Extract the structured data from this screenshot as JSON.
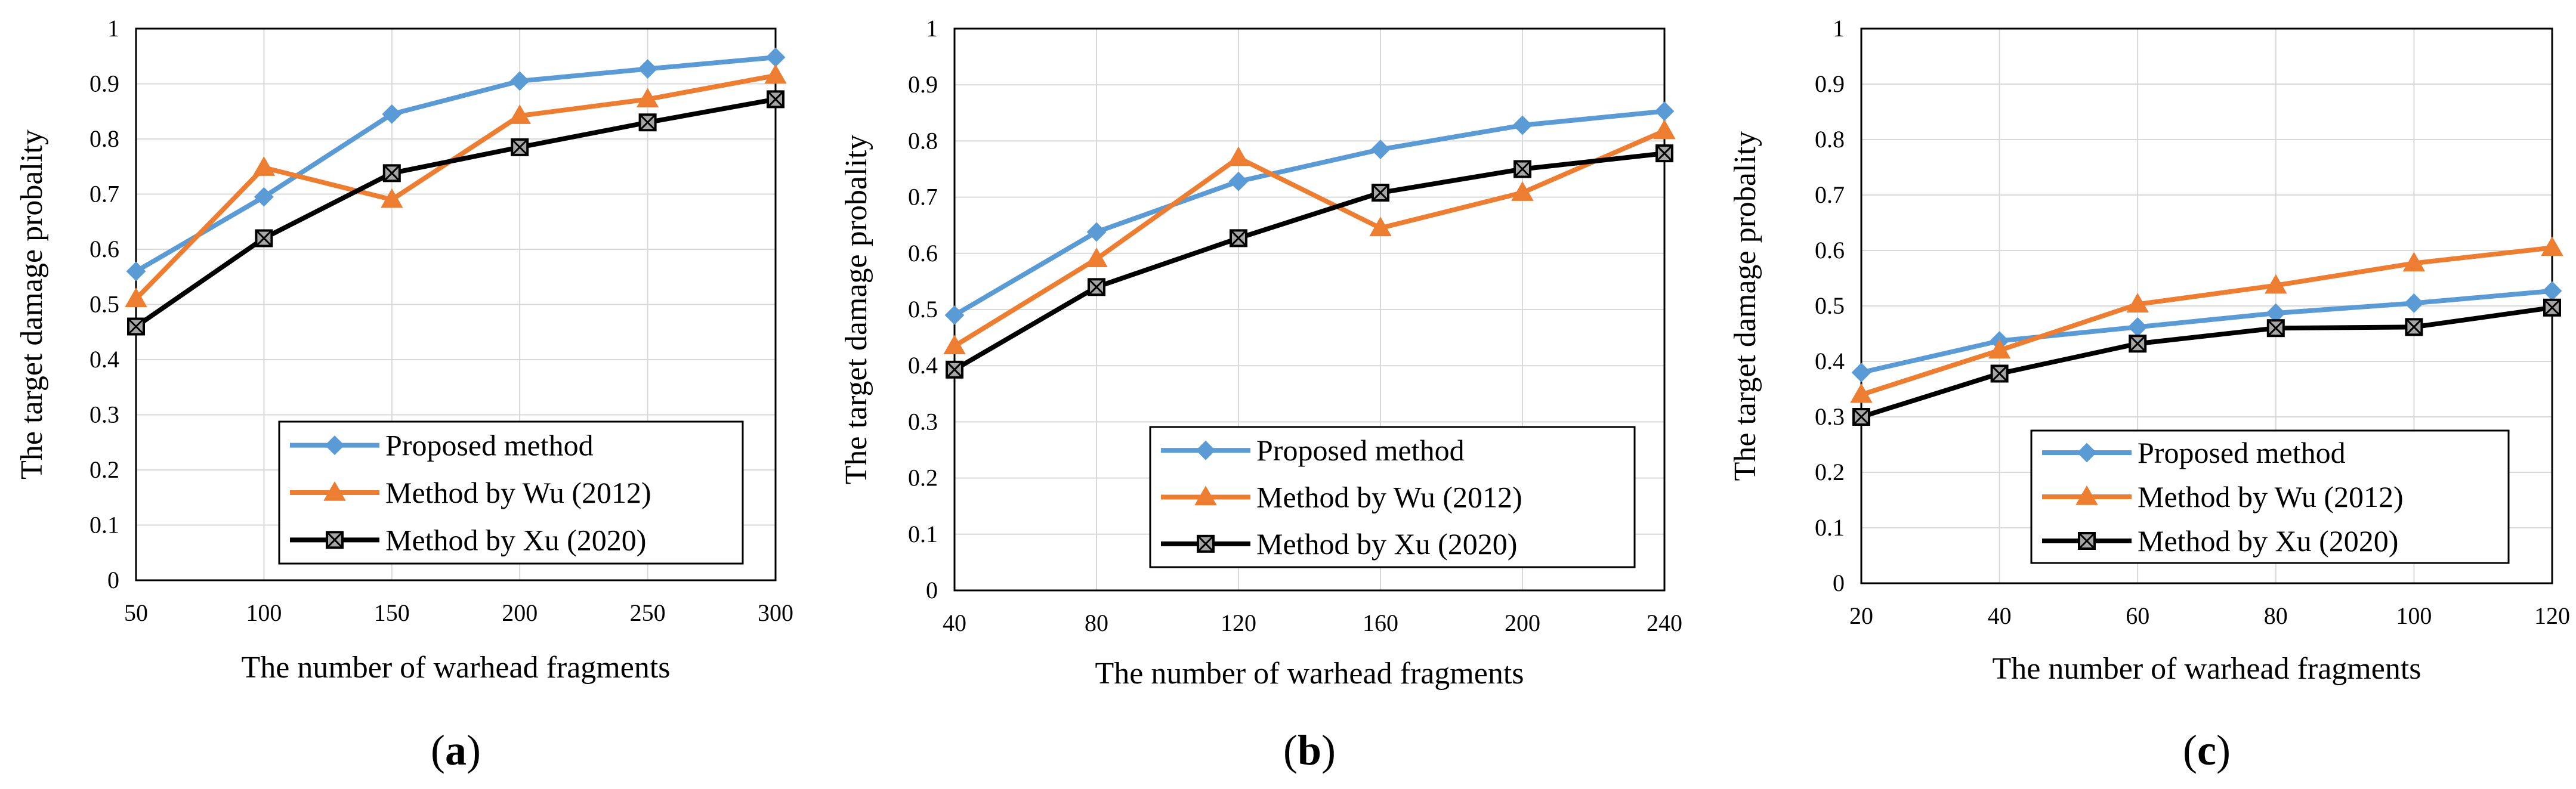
{
  "chart_data": [
    {
      "type": "line",
      "panel_label": "a",
      "xlabel": "The number of warhead fragments",
      "ylabel": "The target damage probality",
      "x": [
        50,
        100,
        150,
        200,
        250,
        300
      ],
      "x_ticks": [
        "50",
        "100",
        "150",
        "200",
        "250",
        "300"
      ],
      "ylim": [
        0,
        1
      ],
      "y_ticks": [
        "0",
        "0.1",
        "0.2",
        "0.3",
        "0.4",
        "0.5",
        "0.6",
        "0.7",
        "0.8",
        "0.9",
        "1"
      ],
      "grid": true,
      "legend_position": "bottom-right",
      "series": [
        {
          "name": "Proposed method",
          "color": "#5b9bd5",
          "marker": "diamond",
          "values": [
            0.56,
            0.695,
            0.845,
            0.905,
            0.927,
            0.948
          ]
        },
        {
          "name": "Method by Wu (2012)",
          "color": "#ed7d31",
          "marker": "triangle",
          "values": [
            0.51,
            0.748,
            0.69,
            0.842,
            0.872,
            0.915
          ]
        },
        {
          "name": "Method by Xu (2020)",
          "color": "#000000",
          "marker": "square-x",
          "values": [
            0.46,
            0.62,
            0.738,
            0.785,
            0.83,
            0.872
          ]
        }
      ]
    },
    {
      "type": "line",
      "panel_label": "b",
      "xlabel": "The number of warhead fragments",
      "ylabel": "The target damage probality",
      "x": [
        40,
        80,
        120,
        160,
        200,
        240
      ],
      "x_ticks": [
        "40",
        "80",
        "120",
        "160",
        "200",
        "240"
      ],
      "ylim": [
        0,
        1
      ],
      "y_ticks": [
        "0",
        "0.1",
        "0.2",
        "0.3",
        "0.4",
        "0.5",
        "0.6",
        "0.7",
        "0.8",
        "0.9",
        "1"
      ],
      "grid": true,
      "legend_position": "bottom-right",
      "series": [
        {
          "name": "Proposed method",
          "color": "#5b9bd5",
          "marker": "diamond",
          "values": [
            0.49,
            0.638,
            0.728,
            0.785,
            0.828,
            0.853
          ]
        },
        {
          "name": "Method by Wu (2012)",
          "color": "#ed7d31",
          "marker": "triangle",
          "values": [
            0.435,
            0.59,
            0.77,
            0.645,
            0.708,
            0.818
          ]
        },
        {
          "name": "Method by Xu (2020)",
          "color": "#000000",
          "marker": "square-x",
          "values": [
            0.393,
            0.54,
            0.627,
            0.708,
            0.75,
            0.778
          ]
        }
      ]
    },
    {
      "type": "line",
      "panel_label": "c",
      "xlabel": "The number of warhead fragments",
      "ylabel": "The target damage probality",
      "x": [
        20,
        40,
        60,
        80,
        100,
        120
      ],
      "x_ticks": [
        "20",
        "40",
        "60",
        "80",
        "100",
        "120"
      ],
      "ylim": [
        0,
        1
      ],
      "y_ticks": [
        "0",
        "0.1",
        "0.2",
        "0.3",
        "0.4",
        "0.5",
        "0.6",
        "0.7",
        "0.8",
        "0.9",
        "1"
      ],
      "grid": true,
      "legend_position": "bottom-right",
      "series": [
        {
          "name": "Proposed method",
          "color": "#5b9bd5",
          "marker": "diamond",
          "values": [
            0.38,
            0.437,
            0.462,
            0.487,
            0.505,
            0.527
          ]
        },
        {
          "name": "Method by Wu (2012)",
          "color": "#ed7d31",
          "marker": "triangle",
          "values": [
            0.34,
            0.42,
            0.503,
            0.537,
            0.577,
            0.605
          ]
        },
        {
          "name": "Method by Xu (2020)",
          "color": "#000000",
          "marker": "square-x",
          "values": [
            0.3,
            0.378,
            0.432,
            0.46,
            0.462,
            0.497
          ]
        }
      ]
    }
  ]
}
